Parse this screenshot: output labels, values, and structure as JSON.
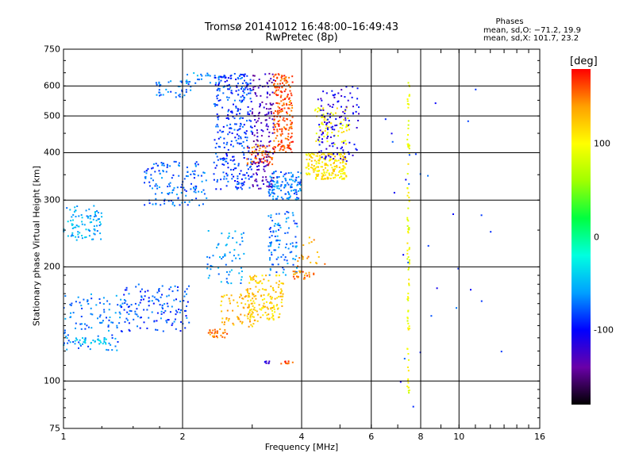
{
  "chart_data": {
    "type": "scatter",
    "title": "Tromsø 20141012 16:48:00–16:49:43",
    "subtitle": "RwPretec (8p)",
    "xlabel": "Frequency [MHz]",
    "ylabel": "Stationary phase Virtual Height [km]",
    "x_scale": "log",
    "y_scale": "log",
    "xlim": [
      1,
      16
    ],
    "ylim": [
      75,
      750
    ],
    "x_ticks": [
      1,
      2,
      4,
      6,
      8,
      10,
      16
    ],
    "y_ticks": [
      75,
      100,
      200,
      300,
      400,
      500,
      600,
      750
    ],
    "grid": true,
    "stats": {
      "heading": "Phases",
      "line_o": "mean, sd,O: −71.2, 19.9",
      "line_x": "mean, sd,X: 101.7, 23.2"
    },
    "colorbar": {
      "label": "[deg]",
      "range": [
        -180,
        180
      ],
      "ticks": [
        100,
        0,
        -100
      ],
      "colors": [
        "#000000",
        "#6a00a8",
        "#0000ff",
        "#00a0ff",
        "#00ffe0",
        "#00ff40",
        "#a0ff00",
        "#ffff00",
        "#ffa000",
        "#ff0000"
      ]
    },
    "clusters": [
      {
        "f": [
          1.0,
          1.25
        ],
        "h": [
          235,
          290
        ],
        "phase": -55,
        "n": 90
      },
      {
        "f": [
          1.0,
          1.4
        ],
        "h": [
          120,
          170
        ],
        "phase": -70,
        "n": 110
      },
      {
        "f": [
          1.05,
          1.3
        ],
        "h": [
          125,
          130
        ],
        "phase": -45,
        "n": 30
      },
      {
        "f": [
          1.4,
          2.1
        ],
        "h": [
          135,
          180
        ],
        "phase": -80,
        "n": 140
      },
      {
        "f": [
          1.6,
          2.3
        ],
        "h": [
          290,
          380
        ],
        "phase": -75,
        "n": 140
      },
      {
        "f": [
          1.7,
          2.1
        ],
        "h": [
          560,
          620
        ],
        "phase": -70,
        "n": 40
      },
      {
        "f": [
          2.0,
          2.5
        ],
        "h": [
          610,
          650
        ],
        "phase": -60,
        "n": 25
      },
      {
        "f": [
          2.3,
          2.9
        ],
        "h": [
          180,
          250
        ],
        "phase": -60,
        "n": 60
      },
      {
        "f": [
          2.4,
          3.0
        ],
        "h": [
          320,
          650
        ],
        "phase": -85,
        "n": 320
      },
      {
        "f": [
          2.3,
          2.6
        ],
        "h": [
          130,
          137
        ],
        "phase": 150,
        "n": 30
      },
      {
        "f": [
          2.5,
          3.1
        ],
        "h": [
          138,
          170
        ],
        "phase": 130,
        "n": 70
      },
      {
        "f": [
          2.9,
          3.6
        ],
        "h": [
          145,
          190
        ],
        "phase": 120,
        "n": 150
      },
      {
        "f": [
          2.9,
          3.4
        ],
        "h": [
          370,
          420
        ],
        "phase": 155,
        "n": 60
      },
      {
        "f": [
          3.0,
          3.4
        ],
        "h": [
          320,
          650
        ],
        "phase": -130,
        "n": 160
      },
      {
        "f": [
          3.4,
          3.8
        ],
        "h": [
          400,
          650
        ],
        "phase": 160,
        "n": 200
      },
      {
        "f": [
          3.3,
          4.0
        ],
        "h": [
          300,
          360
        ],
        "phase": -70,
        "n": 120
      },
      {
        "f": [
          3.3,
          3.9
        ],
        "h": [
          190,
          280
        ],
        "phase": -70,
        "n": 100
      },
      {
        "f": [
          3.8,
          4.3
        ],
        "h": [
          185,
          195
        ],
        "phase": 150,
        "n": 25
      },
      {
        "f": [
          4.1,
          5.2
        ],
        "h": [
          340,
          400
        ],
        "phase": 110,
        "n": 200
      },
      {
        "f": [
          4.3,
          5.3
        ],
        "h": [
          420,
          530
        ],
        "phase": 100,
        "n": 70
      },
      {
        "f": [
          4.4,
          5.6
        ],
        "h": [
          380,
          600
        ],
        "phase": -110,
        "n": 120
      },
      {
        "f": [
          3.9,
          4.6
        ],
        "h": [
          200,
          240
        ],
        "phase": 140,
        "n": 20
      },
      {
        "f": [
          3.55,
          3.8
        ],
        "h": [
          111,
          113
        ],
        "phase": 160,
        "n": 10
      },
      {
        "f": [
          3.2,
          3.35
        ],
        "h": [
          111,
          113
        ],
        "phase": -110,
        "n": 8
      },
      {
        "f": [
          7.4,
          7.5
        ],
        "h": [
          90,
          640
        ],
        "phase": 95,
        "n": 90
      },
      {
        "f": [
          6.5,
          13.0
        ],
        "h": [
          85,
          650
        ],
        "phase": -90,
        "n": 30
      }
    ]
  }
}
